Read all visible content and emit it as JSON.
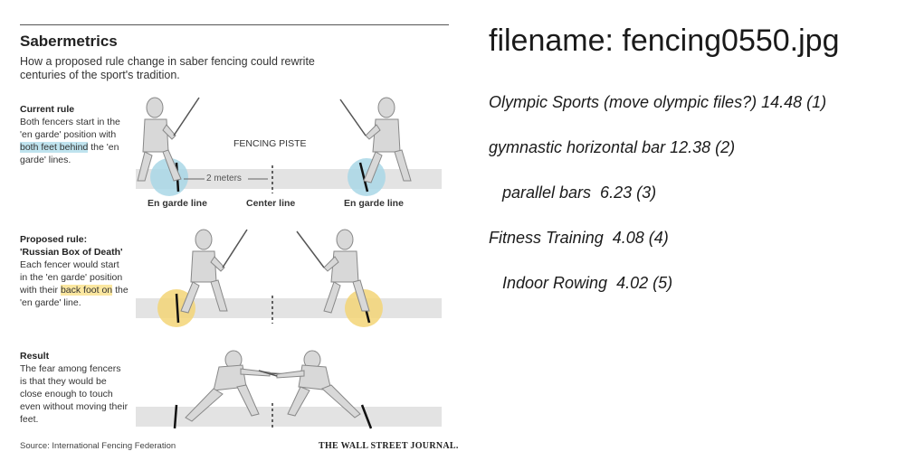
{
  "graphic": {
    "title": "Sabermetrics",
    "subtitle": "How a proposed rule change in saber fencing could rewrite centuries of the sport's tradition.",
    "current_rule": {
      "heading": "Current rule",
      "text_before": "Both fencers start in the 'en garde' position with",
      "highlight": "both feet behind",
      "text_after": "the 'en garde' lines."
    },
    "proposed_rule": {
      "heading_line1": "Proposed rule:",
      "heading_line2": "'Russian Box of Death'",
      "text_before": "Each fencer would start in the 'en garde' position with their",
      "highlight": "back foot on",
      "text_after": "the 'en garde' line."
    },
    "result": {
      "heading": "Result",
      "text": "The fear among fencers is that they would be close enough to touch even without moving their feet."
    },
    "fencing_piste": "FENCING PISTE",
    "distance_label": "2 meters",
    "en_garde_left": "En garde line",
    "center_line": "Center line",
    "en_garde_right": "En garde line",
    "source": "Source: International Fencing Federation",
    "publisher": "THE WALL STREET JOURNAL."
  },
  "filename": "filename: fencing0550.jpg",
  "predictions": [
    {
      "label": "Olympic Sports (move olympic files?) 14.48 (1)"
    },
    {
      "label": "gymnastic horizontal bar 12.38 (2)"
    },
    {
      "label": "   parallel bars  6.23 (3)"
    },
    {
      "label": "Fitness Training  4.08 (4)"
    },
    {
      "label": "   Indoor Rowing  4.02 (5)"
    }
  ],
  "colors": {
    "blue_circle": "#a9d7e6",
    "yellow_circle": "#f3d577",
    "strip": "#e3e3e3"
  }
}
